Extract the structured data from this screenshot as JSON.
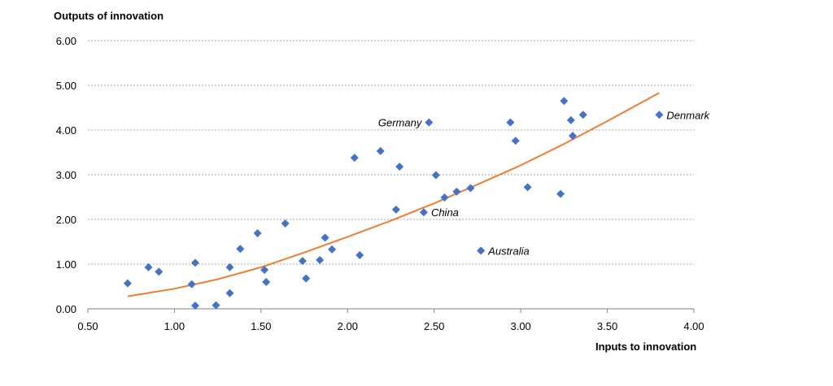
{
  "chart_data": {
    "type": "scatter",
    "xlabel": "Inputs to innovation",
    "ylabel": "Outputs of innovation",
    "xlim": [
      0.5,
      4.0
    ],
    "ylim": [
      0.0,
      6.0
    ],
    "x_ticks": [
      "0.50",
      "1.00",
      "1.50",
      "2.00",
      "2.50",
      "3.00",
      "3.50",
      "4.00"
    ],
    "y_ticks": [
      "0.00",
      "1.00",
      "2.00",
      "3.00",
      "4.00",
      "5.00",
      "6.00"
    ],
    "grid": "horizontal dashed",
    "marker_color": "#4472C4",
    "trend_color": "#ED7D31",
    "points": [
      {
        "x": 0.73,
        "y": 0.57
      },
      {
        "x": 0.85,
        "y": 0.93
      },
      {
        "x": 0.91,
        "y": 0.83
      },
      {
        "x": 1.1,
        "y": 0.55
      },
      {
        "x": 1.12,
        "y": 1.03
      },
      {
        "x": 1.12,
        "y": 0.07
      },
      {
        "x": 1.24,
        "y": 0.08
      },
      {
        "x": 1.32,
        "y": 0.93
      },
      {
        "x": 1.32,
        "y": 0.35
      },
      {
        "x": 1.38,
        "y": 1.34
      },
      {
        "x": 1.48,
        "y": 1.69
      },
      {
        "x": 1.52,
        "y": 0.87
      },
      {
        "x": 1.53,
        "y": 0.6
      },
      {
        "x": 1.64,
        "y": 1.91
      },
      {
        "x": 1.74,
        "y": 1.07
      },
      {
        "x": 1.76,
        "y": 0.68
      },
      {
        "x": 1.84,
        "y": 1.09
      },
      {
        "x": 1.87,
        "y": 1.59
      },
      {
        "x": 1.91,
        "y": 1.33
      },
      {
        "x": 2.04,
        "y": 3.38
      },
      {
        "x": 2.07,
        "y": 1.2
      },
      {
        "x": 2.19,
        "y": 3.53
      },
      {
        "x": 2.28,
        "y": 2.22
      },
      {
        "x": 2.3,
        "y": 3.18
      },
      {
        "x": 2.44,
        "y": 2.16,
        "label": "China"
      },
      {
        "x": 2.47,
        "y": 4.17,
        "label": "Germany"
      },
      {
        "x": 2.51,
        "y": 2.99
      },
      {
        "x": 2.56,
        "y": 2.49
      },
      {
        "x": 2.63,
        "y": 2.62
      },
      {
        "x": 2.71,
        "y": 2.7
      },
      {
        "x": 2.77,
        "y": 1.3,
        "label": "Australia"
      },
      {
        "x": 2.94,
        "y": 4.17
      },
      {
        "x": 2.97,
        "y": 3.76
      },
      {
        "x": 3.04,
        "y": 2.72
      },
      {
        "x": 3.23,
        "y": 2.57
      },
      {
        "x": 3.25,
        "y": 4.65
      },
      {
        "x": 3.29,
        "y": 4.22
      },
      {
        "x": 3.3,
        "y": 3.87
      },
      {
        "x": 3.36,
        "y": 4.34
      },
      {
        "x": 3.8,
        "y": 4.34,
        "label": "Denmark"
      }
    ],
    "trendline": {
      "type": "polynomial",
      "x": [
        0.73,
        1.0,
        1.25,
        1.5,
        1.75,
        2.0,
        2.25,
        2.5,
        2.75,
        3.0,
        3.25,
        3.5,
        3.8
      ],
      "y": [
        0.28,
        0.45,
        0.66,
        0.93,
        1.26,
        1.61,
        1.97,
        2.36,
        2.78,
        3.21,
        3.69,
        4.2,
        4.83
      ]
    }
  }
}
